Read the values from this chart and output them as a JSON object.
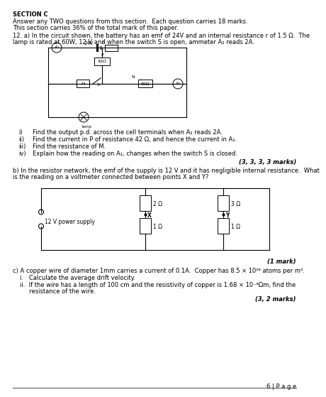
{
  "bg_color": "#ffffff",
  "title_lines": [
    "SECTION C",
    "Answer any TWO questions from this section.  Each question carries 18 marks.",
    "This section carries 36% of the total mark of this paper."
  ],
  "q12a_line1": "12. a) In the circuit shown, the battery has an emf of 24V and an internal resistance r of 1.5 Ω.  The",
  "q12a_line2": "lamp is rated at 60W, 12 V and when the switch S is open, ammeter A₂ reads 2A.",
  "sub_items": [
    [
      "i)",
      "Find the output p.d. across the cell terminals when A₂ reads 2A."
    ],
    [
      "ii)",
      "Find the current in P of resistance 42 Ω, and hence the current in A₁."
    ],
    [
      "iii)",
      "Find the resistance of M."
    ],
    [
      "iv)",
      "Explain how the reading on A₁, changes when the switch S is closed."
    ]
  ],
  "marks_a": "(3, 3, 3, 3 marks)",
  "q12b_line1": "b) In the resistor network, the emf of the supply is 12 V and it has negligible internal resistance.  What",
  "q12b_line2": "is the reading on a voltmeter connected between points X and Y?",
  "marks_b": "(1 mark)",
  "q12c_line1": "c) A copper wire of diameter 1mm carries a current of 0.1A.  Copper has 8.5 × 10²⁸ atoms per m³.",
  "c_sub1": "i.   Calculate the average drift velocity.",
  "c_sub2a": "ii.  If the wire has a length of 100 cm and the resistivity of copper is 1.68 × 10⁻⁸Ωm, find the",
  "c_sub2b": "     resistance of the wire.",
  "marks_c": "(3, 2 marks)",
  "page_footer": "6 | P a g e"
}
